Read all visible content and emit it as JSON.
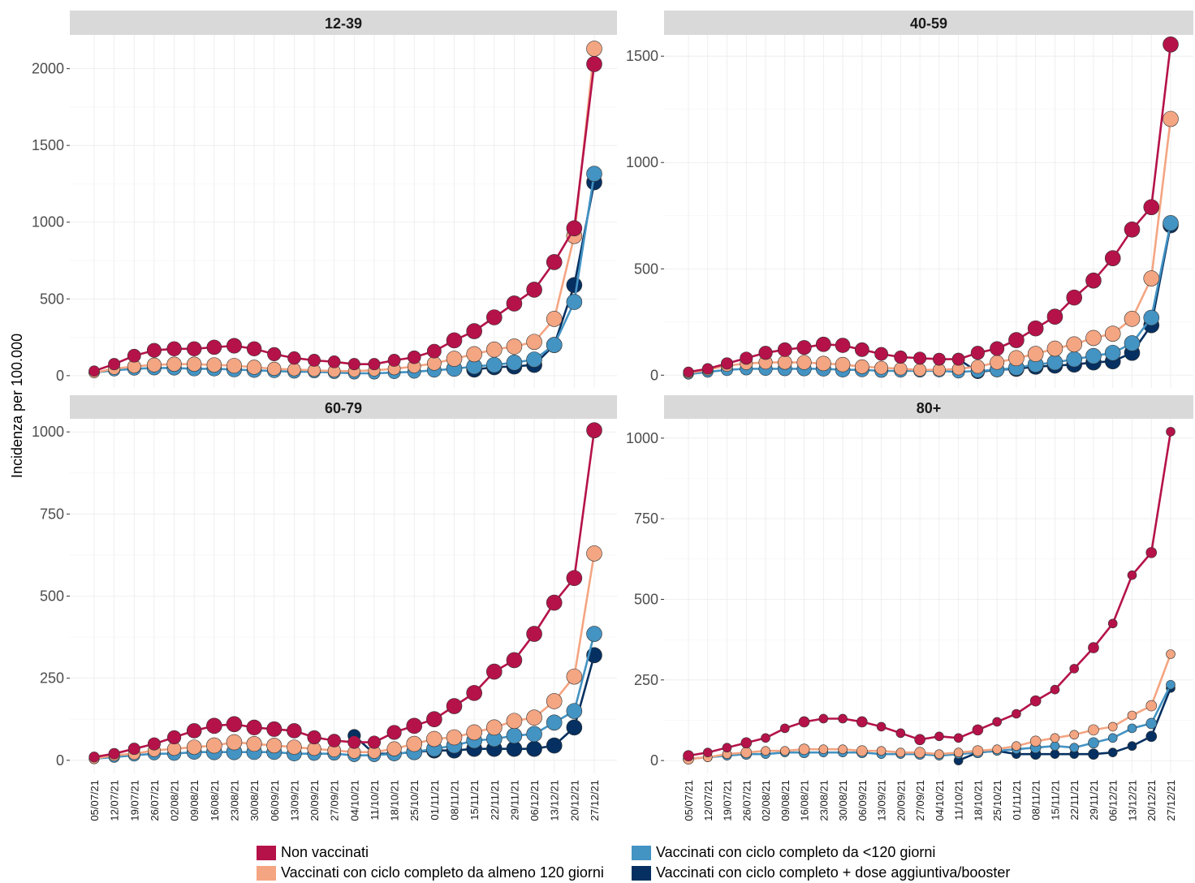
{
  "chart_data": {
    "type": "line",
    "ylabel": "Incidenza per 100.000",
    "xlabel": "",
    "grid": true,
    "legend_position": "bottom",
    "categories": [
      "05/07/21",
      "12/07/21",
      "19/07/21",
      "26/07/21",
      "02/08/21",
      "09/08/21",
      "16/08/21",
      "23/08/21",
      "30/08/21",
      "06/09/21",
      "13/09/21",
      "20/09/21",
      "27/09/21",
      "04/10/21",
      "11/10/21",
      "18/10/21",
      "25/10/21",
      "01/11/21",
      "08/11/21",
      "15/11/21",
      "22/11/21",
      "29/11/21",
      "06/12/21",
      "13/12/21",
      "20/12/21",
      "27/12/21"
    ],
    "series_meta": [
      {
        "name": "Non vaccinati",
        "color": "#B5124A"
      },
      {
        "name": "Vaccinati con ciclo completo da almeno 120 giorni",
        "color": "#F4A582"
      },
      {
        "name": "Vaccinati con ciclo completo da <120 giorni",
        "color": "#4393C3"
      },
      {
        "name": "Vaccinati con ciclo completo + dose aggiuntiva/booster",
        "color": "#053061"
      }
    ],
    "panels": [
      {
        "title": "12-39",
        "ylim": [
          -80,
          2220
        ],
        "yticks": [
          0,
          500,
          1000,
          1500,
          2000
        ],
        "series": [
          {
            "name": "Non vaccinati",
            "values": [
              30,
              75,
              130,
              165,
              175,
              175,
              185,
              195,
              175,
              140,
              115,
              100,
              90,
              75,
              75,
              100,
              120,
              160,
              230,
              290,
              380,
              470,
              560,
              740,
              960,
              2030
            ]
          },
          {
            "name": "Vaccinati con ciclo completo da almeno 120 giorni",
            "values": [
              20,
              45,
              60,
              70,
              75,
              75,
              70,
              65,
              55,
              45,
              40,
              35,
              30,
              30,
              35,
              45,
              60,
              80,
              110,
              140,
              170,
              190,
              220,
              370,
              910,
              2130
            ]
          },
          {
            "name": "Vaccinati con ciclo completo da <120 giorni",
            "values": [
              20,
              35,
              45,
              50,
              50,
              45,
              45,
              40,
              35,
              30,
              25,
              25,
              20,
              15,
              15,
              20,
              25,
              35,
              45,
              60,
              70,
              85,
              105,
              200,
              480,
              1315
            ]
          },
          {
            "name": "Vaccinati con ciclo completo + dose aggiuntiva/booster",
            "values": [
              null,
              null,
              null,
              null,
              null,
              null,
              null,
              null,
              null,
              null,
              null,
              null,
              null,
              null,
              null,
              null,
              null,
              null,
              null,
              40,
              55,
              60,
              70,
              200,
              590,
              1260
            ]
          }
        ]
      },
      {
        "title": "40-59",
        "ylim": [
          -60,
          1600
        ],
        "yticks": [
          0,
          500,
          1000,
          1500
        ],
        "series": [
          {
            "name": "Non vaccinati",
            "values": [
              15,
              30,
              55,
              80,
              105,
              120,
              130,
              145,
              140,
              120,
              100,
              85,
              80,
              75,
              75,
              105,
              125,
              165,
              220,
              275,
              365,
              445,
              550,
              685,
              790,
              1555
            ]
          },
          {
            "name": "Vaccinati con ciclo completo da almeno 120 giorni",
            "values": [
              10,
              25,
              45,
              55,
              60,
              60,
              60,
              55,
              50,
              40,
              35,
              30,
              25,
              25,
              30,
              40,
              60,
              80,
              100,
              125,
              145,
              175,
              195,
              265,
              455,
              1205
            ]
          },
          {
            "name": "Vaccinati con ciclo completo da <120 giorni",
            "values": [
              5,
              15,
              25,
              30,
              30,
              30,
              30,
              30,
              25,
              25,
              20,
              20,
              20,
              20,
              15,
              20,
              25,
              35,
              50,
              60,
              75,
              90,
              105,
              150,
              270,
              715
            ]
          },
          {
            "name": "Vaccinati con ciclo completo + dose aggiuntiva/booster",
            "values": [
              null,
              null,
              null,
              null,
              null,
              null,
              null,
              null,
              null,
              null,
              null,
              null,
              null,
              null,
              75,
              15,
              25,
              30,
              40,
              45,
              50,
              60,
              65,
              105,
              235,
              705
            ]
          }
        ]
      },
      {
        "title": "60-79",
        "ylim": [
          -40,
          1040
        ],
        "yticks": [
          0,
          250,
          500,
          750,
          1000
        ],
        "series": [
          {
            "name": "Non vaccinati",
            "values": [
              10,
              20,
              35,
              50,
              70,
              90,
              105,
              110,
              100,
              95,
              90,
              70,
              60,
              55,
              55,
              85,
              105,
              125,
              165,
              205,
              270,
              305,
              385,
              480,
              555,
              1005
            ]
          },
          {
            "name": "Vaccinati con ciclo completo da almeno 120 giorni",
            "values": [
              5,
              15,
              20,
              30,
              35,
              40,
              45,
              55,
              50,
              45,
              40,
              35,
              30,
              25,
              25,
              35,
              50,
              65,
              70,
              85,
              100,
              120,
              130,
              180,
              255,
              630
            ]
          },
          {
            "name": "Vaccinati con ciclo completo da <120 giorni",
            "values": [
              5,
              10,
              15,
              20,
              20,
              25,
              25,
              25,
              25,
              25,
              20,
              20,
              20,
              15,
              15,
              20,
              25,
              35,
              45,
              60,
              65,
              75,
              80,
              115,
              150,
              385
            ]
          },
          {
            "name": "Vaccinati con ciclo completo + dose aggiuntiva/booster",
            "values": [
              null,
              null,
              null,
              null,
              null,
              null,
              null,
              null,
              null,
              null,
              null,
              null,
              null,
              75,
              20,
              20,
              25,
              30,
              30,
              35,
              35,
              35,
              35,
              45,
              100,
              320
            ]
          }
        ]
      },
      {
        "title": "80+",
        "ylim": [
          -40,
          1060
        ],
        "yticks": [
          0,
          250,
          500,
          750,
          1000
        ],
        "series": [
          {
            "name": "Non vaccinati",
            "values": [
              15,
              25,
              40,
              55,
              70,
              100,
              120,
              130,
              130,
              120,
              105,
              85,
              65,
              75,
              70,
              95,
              120,
              145,
              185,
              220,
              285,
              350,
              425,
              575,
              645,
              1020
            ]
          },
          {
            "name": "Vaccinati con ciclo completo da almeno 120 giorni",
            "values": [
              5,
              10,
              20,
              25,
              30,
              30,
              35,
              35,
              35,
              30,
              30,
              25,
              25,
              20,
              25,
              30,
              35,
              45,
              60,
              70,
              80,
              95,
              105,
              140,
              170,
              330
            ]
          },
          {
            "name": "Vaccinati con ciclo completo da <120 giorni",
            "values": [
              5,
              10,
              15,
              20,
              20,
              25,
              25,
              25,
              25,
              25,
              20,
              20,
              20,
              15,
              20,
              25,
              30,
              35,
              40,
              45,
              40,
              55,
              70,
              100,
              115,
              235
            ]
          },
          {
            "name": "Vaccinati con ciclo completo + dose aggiuntiva/booster",
            "values": [
              null,
              null,
              null,
              null,
              null,
              null,
              null,
              null,
              null,
              null,
              null,
              null,
              null,
              null,
              0,
              25,
              30,
              20,
              20,
              20,
              20,
              20,
              25,
              45,
              75,
              225
            ]
          }
        ]
      }
    ]
  }
}
